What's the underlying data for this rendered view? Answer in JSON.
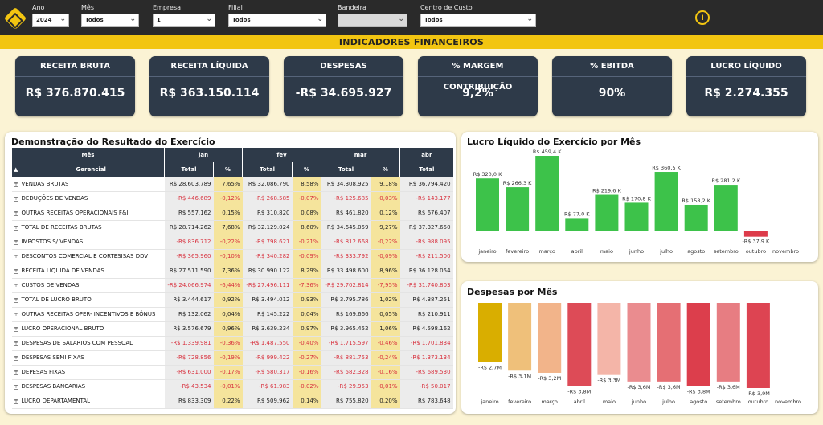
{
  "filters": [
    {
      "label": "Ano",
      "value": "2024"
    },
    {
      "label": "Mês",
      "value": "Todos"
    },
    {
      "label": "Empresa",
      "value": "1"
    },
    {
      "label": "Filial",
      "value": "Todos"
    },
    {
      "label": "Bandeira",
      "value": ""
    },
    {
      "label": "Centro de Custo",
      "value": "Todos"
    }
  ],
  "banner": "INDICADORES FINANCEIROS",
  "kpis": [
    {
      "title": "RECEITA BRUTA",
      "value": "R$ 376.870.415"
    },
    {
      "title": "RECEITA LÍQUIDA",
      "value": "R$ 363.150.114"
    },
    {
      "title": "DESPESAS",
      "value": "-R$ 34.695.927"
    },
    {
      "title": "% MARGEM CONTRIBUIÇÃO",
      "value": "9,2%"
    },
    {
      "title": "% EBITDA",
      "value": "90%"
    },
    {
      "title": "LUCRO LÍQUIDO",
      "value": "R$ 2.274.355"
    }
  ],
  "dre": {
    "title": "Demonstração do Resultado do Exercício",
    "header_mes": "Mês",
    "header_gerencial": "Gerencial",
    "months": [
      "jan",
      "fev",
      "mar",
      "abr"
    ],
    "col_total": "Total",
    "col_pct": "%",
    "rows": [
      {
        "name": "VENDAS BRUTAS",
        "vals": [
          "R$ 28.603.789",
          "7,65%",
          "R$ 32.086.790",
          "8,58%",
          "R$ 34.308.925",
          "9,18%",
          "R$ 36.794.420"
        ]
      },
      {
        "name": "DEDUÇÕES DE VENDAS",
        "vals": [
          "-R$ 446.689",
          "-0,12%",
          "-R$ 268.585",
          "-0,07%",
          "-R$ 125.685",
          "-0,03%",
          "-R$ 143.177"
        ]
      },
      {
        "name": "OUTRAS RECEITAS OPERACIONAIS F&I",
        "vals": [
          "R$ 557.162",
          "0,15%",
          "R$ 310.820",
          "0,08%",
          "R$ 461.820",
          "0,12%",
          "R$ 676.407"
        ]
      },
      {
        "name": "TOTAL DE RECEITAS BRUTAS",
        "vals": [
          "R$ 28.714.262",
          "7,68%",
          "R$ 32.129.024",
          "8,60%",
          "R$ 34.645.059",
          "9,27%",
          "R$ 37.327.650"
        ]
      },
      {
        "name": "IMPOSTOS S/ VENDAS",
        "vals": [
          "-R$ 836.712",
          "-0,22%",
          "-R$ 798.621",
          "-0,21%",
          "-R$ 812.668",
          "-0,22%",
          "-R$ 988.095"
        ]
      },
      {
        "name": "DESCONTOS COMERCIAL E CORTESISAS DDV",
        "vals": [
          "-R$ 365.960",
          "-0,10%",
          "-R$ 340.282",
          "-0,09%",
          "-R$ 333.792",
          "-0,09%",
          "-R$ 211.500"
        ]
      },
      {
        "name": "RECEITA LIQUIDA DE VENDAS",
        "vals": [
          "R$ 27.511.590",
          "7,36%",
          "R$ 30.990.122",
          "8,29%",
          "R$ 33.498.600",
          "8,96%",
          "R$ 36.128.054"
        ]
      },
      {
        "name": "CUSTOS DE VENDAS",
        "vals": [
          "-R$ 24.066.974",
          "-6,44%",
          "-R$ 27.496.111",
          "-7,36%",
          "-R$ 29.702.814",
          "-7,95%",
          "-R$ 31.740.803"
        ]
      },
      {
        "name": "TOTAL DE LUCRO BRUTO",
        "vals": [
          "R$ 3.444.617",
          "0,92%",
          "R$ 3.494.012",
          "0,93%",
          "R$ 3.795.786",
          "1,02%",
          "R$ 4.387.251"
        ]
      },
      {
        "name": "OUTRAS RECEITAS OPER- INCENTIVOS E BÔNUS",
        "vals": [
          "R$ 132.062",
          "0,04%",
          "R$ 145.222",
          "0,04%",
          "R$ 169.666",
          "0,05%",
          "R$ 210.911"
        ]
      },
      {
        "name": "LUCRO OPERACIONAL BRUTO",
        "vals": [
          "R$ 3.576.679",
          "0,96%",
          "R$ 3.639.234",
          "0,97%",
          "R$ 3.965.452",
          "1,06%",
          "R$ 4.598.162"
        ]
      },
      {
        "name": "DESPESAS DE SALARIOS COM PESSOAL",
        "vals": [
          "-R$ 1.339.981",
          "-0,36%",
          "-R$ 1.487.550",
          "-0,40%",
          "-R$ 1.715.597",
          "-0,46%",
          "-R$ 1.701.834"
        ]
      },
      {
        "name": "DESPESAS SEMI FIXAS",
        "vals": [
          "-R$ 728.856",
          "-0,19%",
          "-R$ 999.422",
          "-0,27%",
          "-R$ 881.753",
          "-0,24%",
          "-R$ 1.373.134"
        ]
      },
      {
        "name": "DEPESAS FIXAS",
        "vals": [
          "-R$ 631.000",
          "-0,17%",
          "-R$ 580.317",
          "-0,16%",
          "-R$ 582.328",
          "-0,16%",
          "-R$ 689.530"
        ]
      },
      {
        "name": "DESPESAS BANCARIAS",
        "vals": [
          "-R$ 43.534",
          "-0,01%",
          "-R$ 61.983",
          "-0,02%",
          "-R$ 29.953",
          "-0,01%",
          "-R$ 50.017"
        ]
      },
      {
        "name": "LUCRO DEPARTAMENTAL",
        "vals": [
          "R$ 833.309",
          "0,22%",
          "R$ 509.962",
          "0,14%",
          "R$ 755.820",
          "0,20%",
          "R$ 783.648"
        ]
      }
    ]
  },
  "chart_data": [
    {
      "type": "bar",
      "title": "Lucro Líquido do Exercício por Mês",
      "categories": [
        "janeiro",
        "fevereiro",
        "março",
        "abril",
        "maio",
        "junho",
        "julho",
        "agosto",
        "setembro",
        "outubro",
        "novembro"
      ],
      "values": [
        320.0,
        266.3,
        459.4,
        77.0,
        219.6,
        170.8,
        360.5,
        158.2,
        281.2,
        -37.9,
        null
      ],
      "labels": [
        "R$ 320,0 K",
        "R$ 266,3 K",
        "R$ 459,4 K",
        "R$ 77,0 K",
        "R$ 219,6 K",
        "R$ 170,8 K",
        "R$ 360,5 K",
        "R$ 158,2 K",
        "R$ 281,2 K",
        "-R$ 37,9 K",
        ""
      ],
      "unit": "K",
      "colors": {
        "positive": "#3dc24a",
        "negative": "#dd3b4a"
      }
    },
    {
      "type": "bar",
      "title": "Despesas por Mês",
      "categories": [
        "janeiro",
        "fevereiro",
        "março",
        "abril",
        "maio",
        "junho",
        "julho",
        "agosto",
        "setembro",
        "outubro",
        "novembro"
      ],
      "values": [
        -2.7,
        -3.1,
        -3.2,
        -3.8,
        -3.3,
        -3.6,
        -3.6,
        -3.8,
        -3.6,
        -3.9,
        null
      ],
      "labels": [
        "-R$ 2,7M",
        "-R$ 3,1M",
        "-R$ 3,2M",
        "-R$ 3,8M",
        "-R$ 3,3M",
        "-R$ 3,6M",
        "-R$ 3,6M",
        "-R$ 3,8M",
        "-R$ 3,6M",
        "-R$ 3,9M",
        ""
      ],
      "unit": "M",
      "colors": [
        "#d9ae00",
        "#efc07a",
        "#f2b48a",
        "#dd4b57",
        "#f4b5a8",
        "#ea8c8f",
        "#e56f74",
        "#dc3e4c",
        "#e77d82",
        "#dd4452",
        ""
      ]
    }
  ]
}
